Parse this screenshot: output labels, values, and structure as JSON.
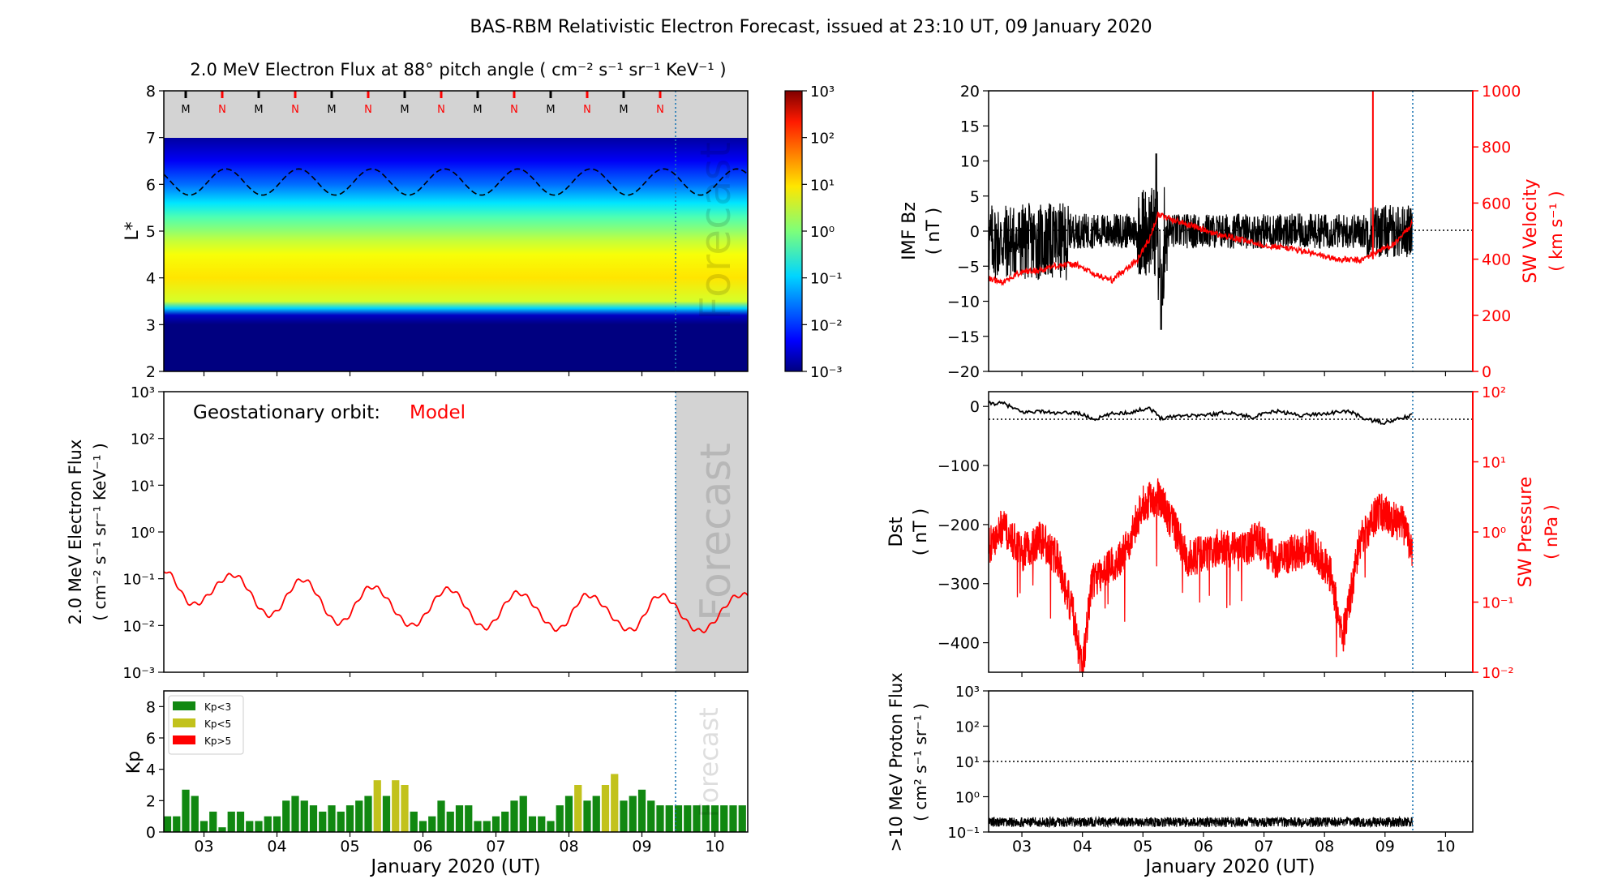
{
  "figure": {
    "title": "BAS-RBM Relativistic Electron Forecast, issued at 23:10 UT, 09 January 2020",
    "x_axis_label": "January 2020 (UT)",
    "day_ticks": [
      "03",
      "04",
      "05",
      "06",
      "07",
      "08",
      "09",
      "10"
    ],
    "forecast_label": "Forecast"
  },
  "colors": {
    "red": "#ff0000",
    "green": "#118811",
    "olive": "#c2c21c",
    "gray_fill": "#d3d3d3",
    "forecast_line": "#1f77b4"
  },
  "chart_data": [
    {
      "id": "lstar_panel",
      "type": "heatmap",
      "title": "2.0 MeV Electron Flux at 88° pitch angle ( cm⁻² s⁻¹ sr⁻¹ KeV⁻¹ )",
      "ylabel": "L*",
      "xlim": [
        2.45,
        10.45
      ],
      "ylim": [
        2,
        8
      ],
      "yticks": [
        "2",
        "3",
        "4",
        "5",
        "6",
        "7",
        "8"
      ],
      "mlt_markers": [
        "M",
        "N",
        "M",
        "N",
        "M",
        "N",
        "M",
        "N",
        "M",
        "N",
        "M",
        "N",
        "M",
        "N"
      ],
      "mlt_marker_days": [
        2.75,
        3.25,
        3.75,
        4.25,
        4.75,
        5.25,
        5.75,
        6.25,
        6.75,
        7.25,
        7.75,
        8.25,
        8.75,
        9.25
      ],
      "profile_L": [
        2.0,
        3.0,
        3.2,
        3.35,
        3.5,
        4.0,
        4.5,
        4.8,
        5.0,
        5.3,
        5.6,
        6.0,
        6.5,
        7.0
      ],
      "profile_log10_flux": [
        -3.0,
        -3.0,
        -2.6,
        -1.0,
        0.5,
        0.9,
        0.7,
        0.4,
        0.1,
        -0.3,
        -0.9,
        -1.6,
        -2.3,
        -2.8
      ],
      "magnetopause_L_mean": 6.05,
      "magnetopause_L_amplitude": 0.28,
      "colorbar": {
        "ticks": [
          "10⁻³",
          "10⁻²",
          "10⁻¹",
          "10⁰",
          "10¹",
          "10²",
          "10³"
        ],
        "log_range": [
          -3,
          3
        ]
      },
      "forecast_start_day": 9.45
    },
    {
      "id": "geo_flux",
      "type": "line",
      "annotation_label": "Geostationary orbit:",
      "annotation_value": "Model",
      "ylabel_line1": "2.0 MeV Electron Flux",
      "ylabel_line2": "( cm⁻² s⁻¹ sr⁻¹ KeV⁻¹ )",
      "ylim_log10": [
        -3,
        3
      ],
      "yticks": [
        "10⁻³",
        "10⁻²",
        "10⁻¹",
        "10⁰",
        "10¹",
        "10²",
        "10³"
      ],
      "peak_days": [
        2.45,
        3.4,
        4.35,
        5.3,
        6.35,
        7.3,
        8.25,
        9.25,
        10.35
      ],
      "peak_log10": [
        -0.82,
        -0.92,
        -1.02,
        -1.17,
        -1.22,
        -1.3,
        -1.35,
        -1.35,
        -1.35
      ],
      "trough_days": [
        2.85,
        3.9,
        4.85,
        5.85,
        6.85,
        7.85,
        8.85,
        9.8
      ],
      "trough_log10": [
        -1.55,
        -1.78,
        -1.95,
        -2.0,
        -2.05,
        -2.08,
        -2.1,
        -2.12
      ],
      "forecast_start_day": 9.45
    },
    {
      "id": "kp",
      "type": "bar",
      "ylabel": "Kp",
      "ylim": [
        0,
        9
      ],
      "yticks": [
        "0",
        "2",
        "4",
        "6",
        "8"
      ],
      "legend": [
        {
          "label": "Kp<3",
          "color": "#118811"
        },
        {
          "label": "Kp<5",
          "color": "#c2c21c"
        },
        {
          "label": "Kp>5",
          "color": "#ff0000"
        }
      ],
      "bar_start_day": 2.5,
      "bar_step_days": 0.125,
      "values": [
        1.0,
        1.0,
        2.7,
        2.3,
        0.7,
        1.3,
        0.3,
        1.3,
        1.3,
        0.7,
        0.7,
        1.0,
        1.0,
        2.0,
        2.3,
        2.0,
        1.7,
        1.3,
        1.7,
        1.3,
        1.7,
        2.0,
        2.3,
        3.3,
        2.3,
        3.3,
        3.0,
        1.3,
        0.7,
        1.0,
        2.0,
        1.3,
        1.7,
        1.7,
        0.7,
        0.7,
        1.0,
        1.3,
        2.0,
        2.3,
        1.0,
        1.0,
        0.7,
        1.7,
        2.3,
        3.0,
        2.0,
        2.3,
        3.0,
        3.7,
        2.0,
        2.3,
        2.7,
        2.0,
        1.7,
        1.7,
        1.7,
        1.7,
        1.7,
        1.7,
        1.7,
        1.7,
        1.7,
        1.7
      ],
      "forecast_start_day": 9.45
    },
    {
      "id": "imf_sw",
      "type": "line",
      "ylabel_left_line1": "IMF Bz",
      "ylabel_left_line2": "( nT )",
      "ylabel_right_line1": "SW Velocity",
      "ylabel_right_line2": "( km s⁻¹ )",
      "ylim_left": [
        -20,
        20
      ],
      "yticks_left": [
        "−20",
        "−15",
        "−10",
        "−5",
        "0",
        "5",
        "10",
        "15",
        "20"
      ],
      "ylim_right": [
        0,
        1000
      ],
      "yticks_right": [
        "0",
        "200",
        "400",
        "600",
        "800",
        "1000"
      ],
      "velocity_days": [
        2.45,
        2.7,
        3.0,
        3.3,
        3.6,
        3.9,
        4.2,
        4.5,
        4.7,
        4.9,
        5.1,
        5.25,
        5.5,
        5.8,
        6.2,
        6.6,
        7.0,
        7.4,
        7.8,
        8.2,
        8.6,
        8.8,
        9.0,
        9.2,
        9.45
      ],
      "velocity_kms": [
        330,
        320,
        355,
        360,
        380,
        380,
        345,
        325,
        365,
        395,
        470,
        560,
        540,
        520,
        490,
        470,
        450,
        440,
        420,
        400,
        395,
        420,
        440,
        460,
        530
      ],
      "velocity_spike_day": 8.8,
      "velocity_spike_kms": 1000,
      "forecast_start_day": 9.45
    },
    {
      "id": "dst_pressure",
      "type": "line",
      "ylabel_left_line1": "Dst",
      "ylabel_left_line2": "( nT )",
      "ylabel_right_line1": "SW Pressure",
      "ylabel_right_line2": "( nPa )",
      "ylim_left": [
        -450,
        25
      ],
      "yticks_left": [
        "−400",
        "−300",
        "−200",
        "−100",
        "0"
      ],
      "ylim_right_log10": [
        -2,
        2
      ],
      "yticks_right": [
        "10⁻²",
        "10⁻¹",
        "10⁰",
        "10¹",
        "10²"
      ],
      "dst_days": [
        2.45,
        2.7,
        3.0,
        3.3,
        3.6,
        3.9,
        4.2,
        4.5,
        4.8,
        5.1,
        5.3,
        5.6,
        6.0,
        6.4,
        6.8,
        7.2,
        7.6,
        8.0,
        8.4,
        8.7,
        9.0,
        9.2,
        9.45
      ],
      "dst_nT": [
        5,
        5,
        -10,
        -8,
        -12,
        -10,
        -22,
        -12,
        -10,
        -2,
        -20,
        -15,
        -15,
        -10,
        -18,
        -8,
        -15,
        -12,
        -8,
        -22,
        -28,
        -22,
        -15
      ],
      "pressure_days": [
        2.45,
        2.7,
        3.0,
        3.3,
        3.6,
        3.85,
        4.0,
        4.15,
        4.4,
        4.7,
        5.0,
        5.25,
        5.5,
        5.75,
        6.0,
        6.3,
        6.6,
        6.9,
        7.2,
        7.5,
        7.8,
        8.1,
        8.3,
        8.6,
        8.9,
        9.1,
        9.3,
        9.45
      ],
      "pressure_log10": [
        -0.2,
        0.1,
        -0.3,
        -0.1,
        -0.4,
        -1.2,
        -2.0,
        -0.7,
        -0.5,
        -0.3,
        0.4,
        0.5,
        0.1,
        -0.4,
        -0.3,
        -0.2,
        -0.3,
        -0.1,
        -0.4,
        -0.3,
        -0.2,
        -0.6,
        -1.5,
        -0.1,
        0.3,
        0.2,
        0.1,
        -0.3
      ],
      "forecast_start_day": 9.45
    },
    {
      "id": "proton",
      "type": "line",
      "ylabel_line1": ">10 MeV Proton Flux",
      "ylabel_line2": "( cm² s⁻¹ sr⁻¹ )",
      "ylim_log10": [
        -1,
        3
      ],
      "yticks": [
        "10⁻¹",
        "10⁰",
        "10¹",
        "10²",
        "10³"
      ],
      "threshold_log10": 1,
      "baseline_log10": -0.72,
      "forecast_start_day": 9.45
    }
  ]
}
